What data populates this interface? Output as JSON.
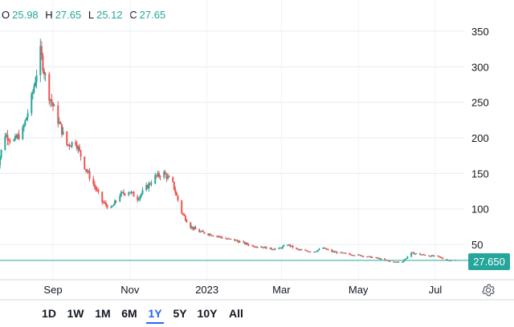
{
  "ohlc": {
    "open_label": "O",
    "open": "25.98",
    "high_label": "H",
    "high": "27.65",
    "low_label": "L",
    "low": "25.12",
    "close_label": "C",
    "close": "27.65"
  },
  "last_price_label": "27.650",
  "ranges": [
    "1D",
    "1W",
    "1M",
    "6M",
    "1Y",
    "5Y",
    "10Y",
    "All"
  ],
  "active_range": "1Y",
  "icons": {
    "settings": "gear-icon"
  },
  "colors": {
    "up": "#26a69a",
    "down": "#ef5350",
    "active": "#2962ff",
    "price_line": "#26a69a"
  },
  "chart_data": {
    "type": "candlestick",
    "x_tick_labels": [
      "Sep",
      "Nov",
      "2023",
      "Mar",
      "May",
      "Jul"
    ],
    "y_ticks": [
      50,
      100,
      150,
      200,
      250,
      300,
      350
    ],
    "ylim": [
      0,
      390
    ],
    "grid": true,
    "last_price": 27.65,
    "close_series_approx": {
      "dates": [
        "2022-07-18",
        "2022-07-25",
        "2022-08-01",
        "2022-08-08",
        "2022-08-15",
        "2022-08-22",
        "2022-08-29",
        "2022-09-05",
        "2022-09-12",
        "2022-09-19",
        "2022-09-26",
        "2022-10-03",
        "2022-10-10",
        "2022-10-17",
        "2022-10-24",
        "2022-10-31",
        "2022-11-07",
        "2022-11-14",
        "2022-11-21",
        "2022-11-28",
        "2022-12-05",
        "2022-12-12",
        "2022-12-19",
        "2022-12-26",
        "2023-01-02",
        "2023-01-09",
        "2023-01-16",
        "2023-01-23",
        "2023-01-30",
        "2023-02-06",
        "2023-02-13",
        "2023-02-20",
        "2023-02-27",
        "2023-03-06",
        "2023-03-13",
        "2023-03-20",
        "2023-03-27",
        "2023-04-03",
        "2023-04-10",
        "2023-04-17",
        "2023-04-24",
        "2023-05-01",
        "2023-05-08",
        "2023-05-15",
        "2023-05-22",
        "2023-05-29",
        "2023-06-05",
        "2023-06-12",
        "2023-06-19",
        "2023-06-26",
        "2023-07-03",
        "2023-07-10",
        "2023-07-17"
      ],
      "close": [
        150,
        205,
        195,
        210,
        255,
        320,
        260,
        225,
        190,
        195,
        160,
        135,
        110,
        100,
        120,
        125,
        115,
        130,
        145,
        150,
        135,
        95,
        75,
        68,
        65,
        62,
        58,
        56,
        52,
        48,
        47,
        44,
        44,
        50,
        43,
        41,
        40,
        45,
        40,
        38,
        36,
        35,
        33,
        31,
        28,
        25,
        26,
        38,
        36,
        34,
        33,
        28,
        27.65
      ]
    }
  }
}
